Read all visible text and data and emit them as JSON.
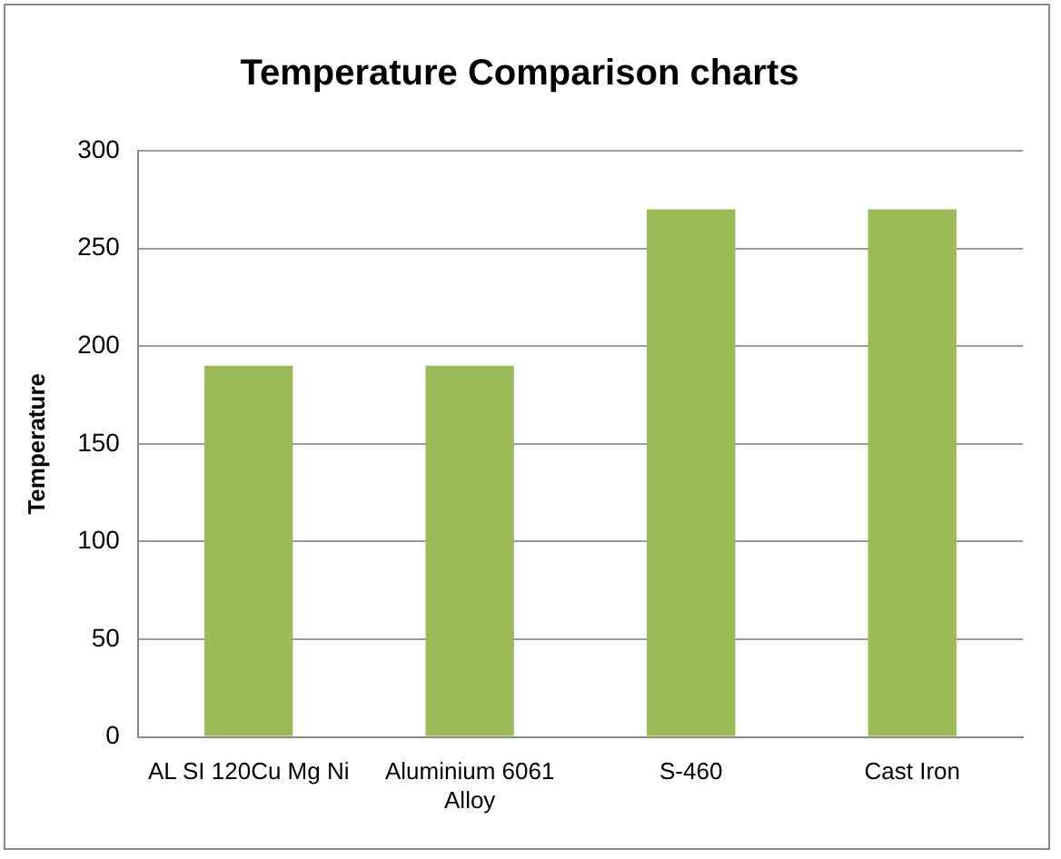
{
  "chart_data": {
    "type": "bar",
    "title": "Temperature Comparison charts",
    "ylabel": "Temperature",
    "categories": [
      "AL SI 120Cu Mg Ni",
      "Aluminium 6061 Alloy",
      "S-460",
      "Cast Iron"
    ],
    "values": [
      190,
      190,
      270,
      270
    ],
    "color": "#9bbb59",
    "ylim": [
      0,
      300
    ],
    "yticks": [
      0,
      50,
      100,
      150,
      200,
      250,
      300
    ],
    "grid": "y",
    "legend": false
  }
}
